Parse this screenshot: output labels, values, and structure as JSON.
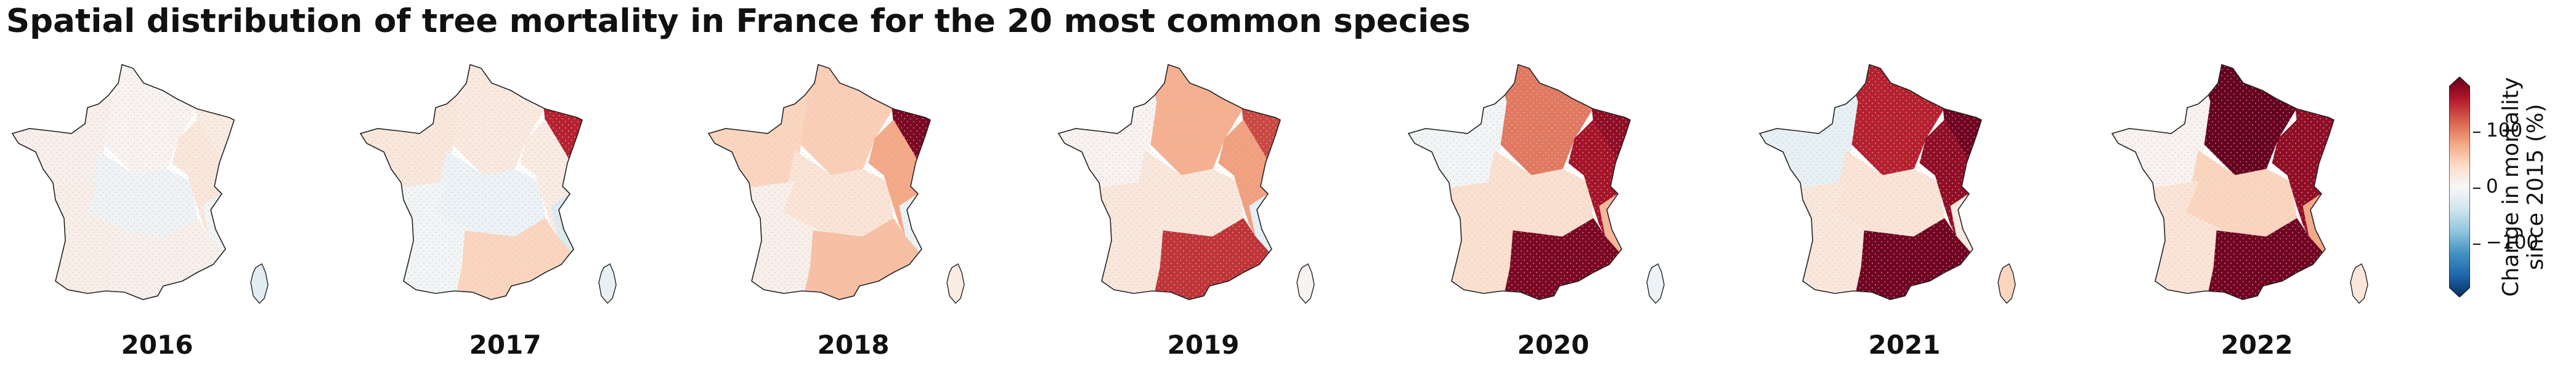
{
  "title": "Spatial distribution of tree mortality in France for the 20 most common species",
  "panels": [
    {
      "year": "2016",
      "regions": {
        "NW": 10,
        "NE": 15,
        "N": 5,
        "C": -8,
        "E": 20,
        "SW": 12,
        "SE": -5,
        "S": 10,
        "COR": -20
      }
    },
    {
      "year": "2017",
      "regions": {
        "NW": 20,
        "NE": 140,
        "N": 18,
        "C": -10,
        "E": 15,
        "SW": -5,
        "SE": -25,
        "S": 40,
        "COR": -15
      }
    },
    {
      "year": "2018",
      "regions": {
        "NW": 40,
        "NE": 170,
        "N": 45,
        "C": 25,
        "E": 70,
        "SW": 10,
        "SE": -10,
        "S": 55,
        "COR": 15
      }
    },
    {
      "year": "2019",
      "regions": {
        "NW": 5,
        "NE": 120,
        "N": 65,
        "C": 20,
        "E": 75,
        "SW": 20,
        "SE": -15,
        "S": 130,
        "COR": 5
      }
    },
    {
      "year": "2020",
      "regions": {
        "NW": -5,
        "NE": 160,
        "N": 95,
        "C": 30,
        "E": 150,
        "SW": 30,
        "SE": 60,
        "S": 170,
        "COR": -10
      }
    },
    {
      "year": "2021",
      "regions": {
        "NW": -15,
        "NE": 175,
        "N": 140,
        "C": 25,
        "E": 160,
        "SW": 20,
        "SE": 15,
        "S": 175,
        "COR": 40
      }
    },
    {
      "year": "2022",
      "regions": {
        "NW": 5,
        "NE": 160,
        "N": 180,
        "C": 40,
        "E": 160,
        "SW": 25,
        "SE": 70,
        "S": 175,
        "COR": 20
      }
    }
  ],
  "colorbar": {
    "label_line1": "Change in mortality",
    "label_line2": "since 2015 (%)",
    "ticks": [
      "100",
      "0",
      "−100"
    ],
    "range": [
      -180,
      180
    ],
    "colormap": "RdBu_r"
  }
}
